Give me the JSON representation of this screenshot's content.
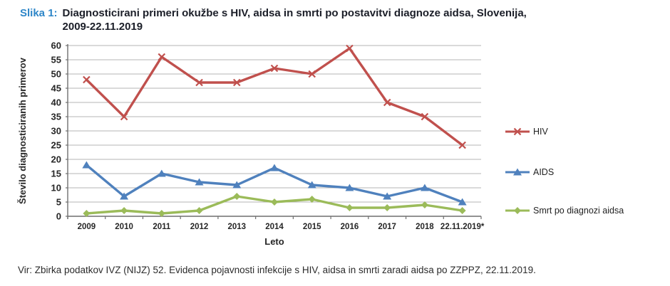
{
  "header": {
    "figure_label": "Slika 1:",
    "title_line1": "Diagnosticirani primeri okužbe s HIV, aidsa in smrti po postavitvi diagnoze aidsa, Slovenija,",
    "title_line2": "2009-22.11.2019",
    "label_color": "#2e86c8",
    "title_color": "#1b1e28"
  },
  "chart_data": {
    "type": "line",
    "categories": [
      "2009",
      "2010",
      "2011",
      "2012",
      "2013",
      "2014",
      "2015",
      "2016",
      "2017",
      "2018",
      "22.11.2019*"
    ],
    "series": [
      {
        "name": "HIV",
        "color": "#c0504d",
        "marker": "x",
        "values": [
          48,
          35,
          56,
          47,
          47,
          52,
          50,
          59,
          40,
          35,
          25
        ]
      },
      {
        "name": "AIDS",
        "color": "#4f81bd",
        "marker": "triangle",
        "values": [
          18,
          7,
          15,
          12,
          11,
          17,
          11,
          10,
          7,
          10,
          5
        ]
      },
      {
        "name": "Smrt po diagnozi aidsa",
        "color": "#9bbb59",
        "marker": "diamond",
        "values": [
          1,
          2,
          1,
          2,
          7,
          5,
          6,
          3,
          3,
          4,
          2
        ]
      }
    ],
    "xlabel": "Leto",
    "ylabel": "Število diagnosticiranih primerov",
    "ylim": [
      0,
      60
    ],
    "ytick_step": 5,
    "grid": true,
    "legend_position": "right",
    "gridline_color": "#b5b5b5",
    "axis_color": "#6f6f6f",
    "tick_label_color": "#262626"
  },
  "source": {
    "text": "Vir: Zbirka podatkov IVZ (NIJZ) 52. Evidenca pojavnosti infekcije s HIV, aidsa in smrti zaradi aidsa po ZZPPZ, 22.11.2019."
  }
}
